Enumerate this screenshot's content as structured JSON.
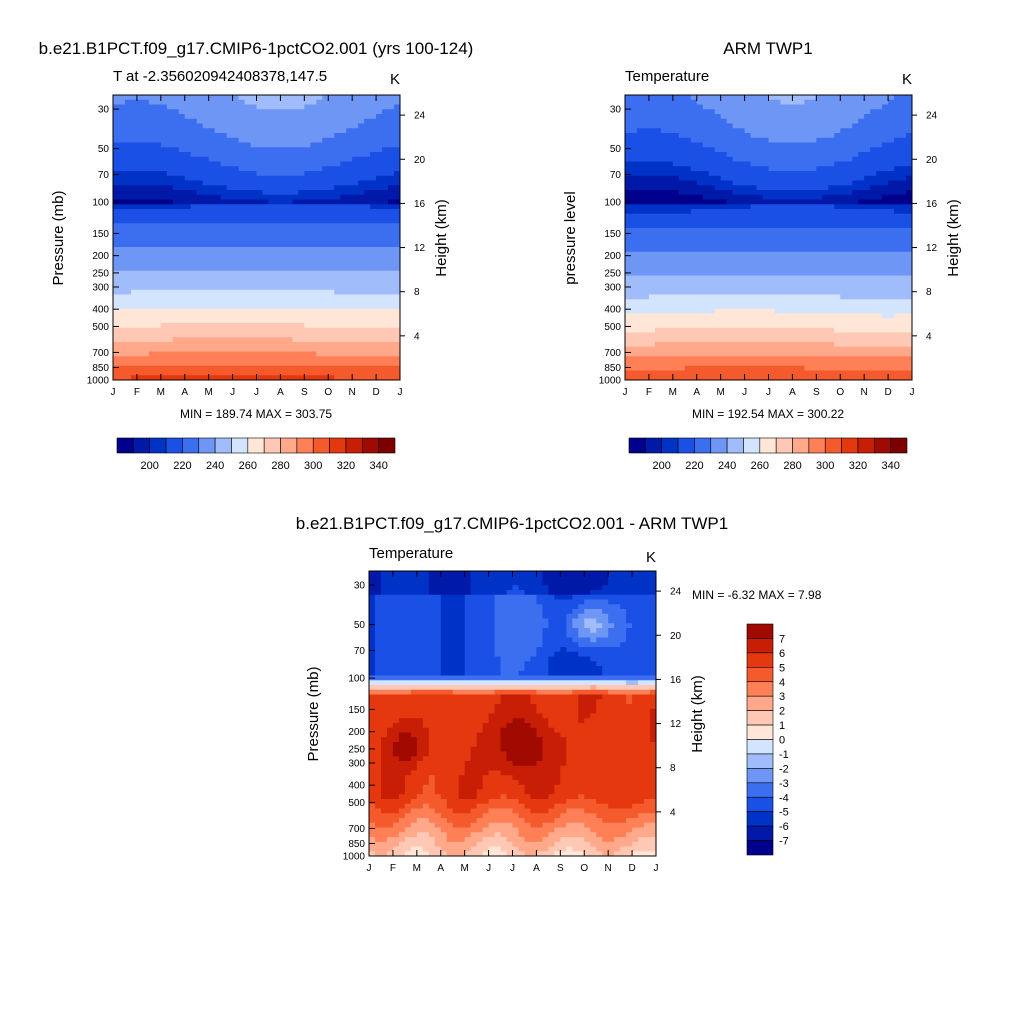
{
  "months": [
    "J",
    "F",
    "M",
    "A",
    "M",
    "J",
    "J",
    "A",
    "S",
    "O",
    "N",
    "D",
    "J"
  ],
  "palette": {
    "blues": [
      "#00008c",
      "#0019a8",
      "#0032c8",
      "#1a50e6",
      "#3c6ef0",
      "#6e96f5",
      "#a0bcfa",
      "#d2e4ff"
    ],
    "reds": [
      "#ffe6d7",
      "#ffc8b4",
      "#ffa88a",
      "#ff8056",
      "#f55a2d",
      "#e6380f",
      "#c81e05",
      "#a00a00",
      "#7d0000"
    ]
  },
  "chart_data": [
    {
      "type": "heatmap",
      "panel_title": "b.e21.B1PCT.f09_g17.CMIP6-1pctCO2.001 (yrs 100-124)",
      "left_title": "T at -2.356020942408378,147.5",
      "right_title": "K",
      "ylabel": "Pressure (mb)",
      "ylabel_right": "Height (km)",
      "x": [
        "J",
        "F",
        "M",
        "A",
        "M",
        "J",
        "J",
        "A",
        "S",
        "O",
        "N",
        "D",
        "J"
      ],
      "pressure_ticks": [
        "30",
        "50",
        "70",
        "100",
        "150",
        "200",
        "250",
        "300",
        "400",
        "500",
        "700",
        "850",
        "1000"
      ],
      "height_ticks": [
        "24",
        "20",
        "16",
        "12",
        "8",
        "4"
      ],
      "ylim": [
        1000,
        25
      ],
      "stats": "MIN = 189.74 MAX = 303.75",
      "colorbar_ticks": [
        "200",
        "220",
        "240",
        "260",
        "280",
        "300",
        "320",
        "340"
      ],
      "levels": [
        190,
        195,
        200,
        210,
        220,
        230,
        240,
        250,
        260,
        270,
        280,
        290,
        300,
        310,
        320,
        330,
        340
      ]
    },
    {
      "type": "heatmap",
      "panel_title": "ARM TWP1",
      "left_title": "Temperature",
      "right_title": "K",
      "ylabel": "pressure level",
      "ylabel_right": "Height (km)",
      "x": [
        "J",
        "F",
        "M",
        "A",
        "M",
        "J",
        "J",
        "A",
        "S",
        "O",
        "N",
        "D",
        "J"
      ],
      "pressure_ticks": [
        "30",
        "50",
        "70",
        "100",
        "150",
        "200",
        "250",
        "300",
        "400",
        "500",
        "700",
        "850",
        "1000"
      ],
      "height_ticks": [
        "24",
        "20",
        "16",
        "12",
        "8",
        "4"
      ],
      "ylim": [
        1000,
        25
      ],
      "stats": "MIN = 192.54 MAX = 300.22",
      "colorbar_ticks": [
        "200",
        "220",
        "240",
        "260",
        "280",
        "300",
        "320",
        "340"
      ]
    },
    {
      "type": "heatmap",
      "panel_title": "b.e21.B1PCT.f09_g17.CMIP6-1pctCO2.001 - ARM TWP1",
      "left_title": "Temperature",
      "right_title": "K",
      "ylabel": "Pressure (mb)",
      "ylabel_right": "Height (km)",
      "x": [
        "J",
        "F",
        "M",
        "A",
        "M",
        "J",
        "J",
        "A",
        "S",
        "O",
        "N",
        "D",
        "J"
      ],
      "pressure_ticks": [
        "30",
        "50",
        "70",
        "100",
        "150",
        "200",
        "250",
        "300",
        "400",
        "500",
        "700",
        "850",
        "1000"
      ],
      "height_ticks": [
        "24",
        "20",
        "16",
        "12",
        "8",
        "4"
      ],
      "ylim": [
        1000,
        25
      ],
      "stats": "MIN =  -6.32 MAX =   7.98",
      "colorbar_ticks": [
        "7",
        "6",
        "5",
        "4",
        "3",
        "2",
        "1",
        "0",
        "-1",
        "-2",
        "-3",
        "-4",
        "-5",
        "-6",
        "-7"
      ]
    }
  ]
}
